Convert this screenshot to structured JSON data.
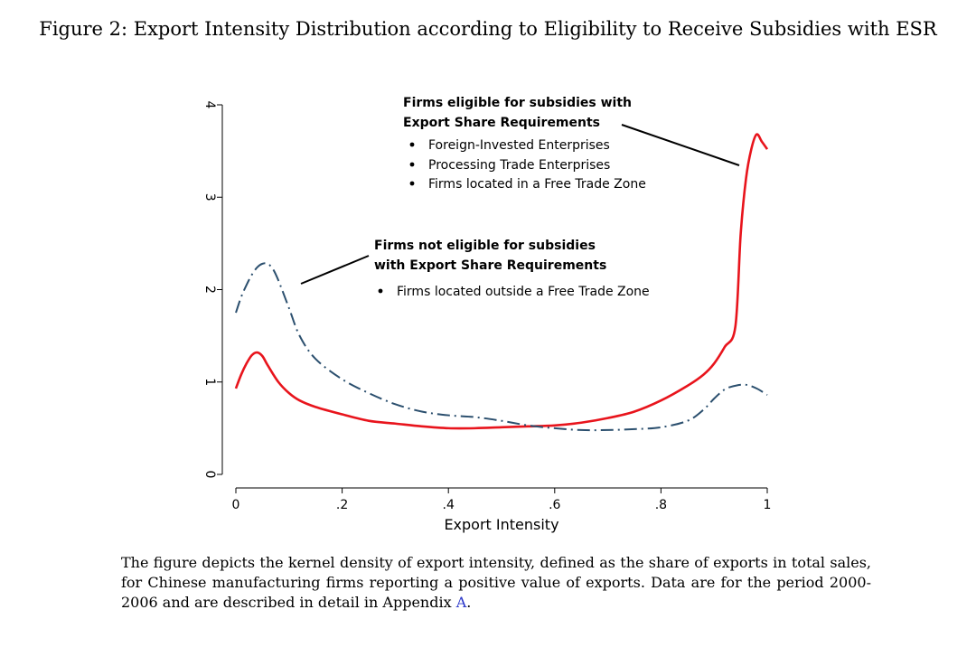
{
  "figure": {
    "title": "Figure 2: Export Intensity Distribution according to Eligibility to Receive Subsidies with ESR",
    "caption_main": "The figure depicts the kernel density of export intensity, defined as the share of exports in total sales, for Chinese manufacturing firms reporting a positive value of exports. Data are for the period 2000-2006 and are described in detail in Appendix ",
    "caption_link": "A",
    "caption_end": "."
  },
  "chart_data": {
    "type": "line",
    "xlabel": "Export Intensity",
    "ylabel": "",
    "xlim": [
      0,
      1
    ],
    "ylim": [
      0,
      4
    ],
    "x_ticks": [
      0,
      0.2,
      0.4,
      0.6,
      0.8,
      1
    ],
    "x_tick_labels": [
      "0",
      ".2",
      ".4",
      ".6",
      ".8",
      "1"
    ],
    "y_ticks": [
      0,
      1,
      2,
      3,
      4
    ],
    "y_tick_labels": [
      "0",
      "1",
      "2",
      "3",
      "4"
    ],
    "grid": false,
    "legend": "none",
    "series": [
      {
        "color": "#e8141c",
        "style": "solid",
        "x": [
          0,
          0.01,
          0.02,
          0.03,
          0.04,
          0.05,
          0.06,
          0.08,
          0.1,
          0.12,
          0.15,
          0.2,
          0.25,
          0.3,
          0.35,
          0.4,
          0.45,
          0.5,
          0.55,
          0.6,
          0.65,
          0.7,
          0.75,
          0.8,
          0.85,
          0.88,
          0.9,
          0.92,
          0.94,
          0.95,
          0.96,
          0.97,
          0.98,
          0.99,
          1.0
        ],
        "y": [
          0.93,
          1.08,
          1.2,
          1.29,
          1.32,
          1.28,
          1.18,
          1.0,
          0.88,
          0.8,
          0.73,
          0.65,
          0.58,
          0.55,
          0.52,
          0.5,
          0.5,
          0.51,
          0.52,
          0.53,
          0.56,
          0.61,
          0.68,
          0.8,
          0.96,
          1.08,
          1.2,
          1.38,
          1.6,
          2.6,
          3.2,
          3.52,
          3.68,
          3.6,
          3.52
        ]
      },
      {
        "color": "#2b4f6e",
        "style": "dashdot",
        "x": [
          0,
          0.01,
          0.02,
          0.03,
          0.04,
          0.05,
          0.06,
          0.07,
          0.08,
          0.1,
          0.12,
          0.15,
          0.2,
          0.25,
          0.3,
          0.35,
          0.4,
          0.45,
          0.5,
          0.55,
          0.6,
          0.65,
          0.7,
          0.75,
          0.8,
          0.85,
          0.88,
          0.9,
          0.92,
          0.94,
          0.96,
          0.98,
          1.0
        ],
        "y": [
          1.75,
          1.92,
          2.05,
          2.16,
          2.24,
          2.28,
          2.28,
          2.22,
          2.1,
          1.8,
          1.5,
          1.25,
          1.03,
          0.88,
          0.76,
          0.68,
          0.64,
          0.62,
          0.58,
          0.53,
          0.5,
          0.48,
          0.48,
          0.49,
          0.51,
          0.58,
          0.7,
          0.82,
          0.92,
          0.96,
          0.97,
          0.93,
          0.86
        ]
      }
    ],
    "annotations": [
      {
        "heading": [
          "Firms eligible for subsidies with",
          "Export Share Requirements"
        ],
        "bullets": [
          "Foreign-Invested Enterprises",
          "Processing Trade Enterprises",
          "Firms located in a Free Trade Zone"
        ]
      },
      {
        "heading": [
          "Firms not eligible for subsidies",
          "with Export Share Requirements"
        ],
        "bullets": [
          "Firms located outside a Free Trade Zone"
        ]
      }
    ]
  }
}
